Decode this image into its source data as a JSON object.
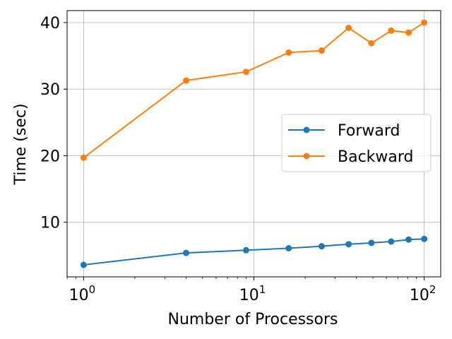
{
  "chart_data": {
    "type": "line",
    "title": "",
    "xlabel": "Number of Processors",
    "ylabel": "Time (sec)",
    "xscale": "log",
    "xlim": [
      0.8,
      125
    ],
    "ylim": [
      1.8,
      41.8
    ],
    "x_ticks": [
      {
        "value": 1,
        "base": "10",
        "exp": "0"
      },
      {
        "value": 10,
        "base": "10",
        "exp": "1"
      },
      {
        "value": 100,
        "base": "10",
        "exp": "2"
      }
    ],
    "y_ticks": [
      {
        "value": 10,
        "label": "10"
      },
      {
        "value": 20,
        "label": "20"
      },
      {
        "value": 30,
        "label": "30"
      },
      {
        "value": 40,
        "label": "40"
      }
    ],
    "grid": true,
    "legend_position": "center-right",
    "x": [
      1,
      4,
      9,
      16,
      25,
      36,
      49,
      64,
      81,
      100
    ],
    "series": [
      {
        "name": "Forward",
        "color": "#1f77b4",
        "values": [
          3.6,
          5.4,
          5.8,
          6.1,
          6.4,
          6.7,
          6.9,
          7.1,
          7.4,
          7.5
        ]
      },
      {
        "name": "Backward",
        "color": "#ff7f0e",
        "values": [
          19.7,
          31.3,
          32.6,
          35.5,
          35.8,
          39.2,
          36.9,
          38.8,
          38.5,
          40.0
        ]
      }
    ]
  }
}
